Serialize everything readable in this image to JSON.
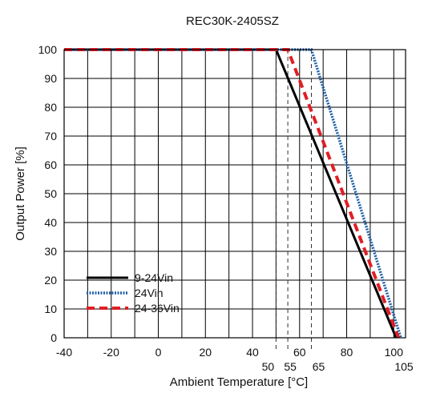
{
  "chart_data": {
    "type": "line",
    "title": "REC30K-2405SZ",
    "xlabel": "Ambient Temperature [°C]",
    "ylabel": "Output Power [%]",
    "xlim": [
      -40,
      105
    ],
    "ylim": [
      0,
      100
    ],
    "x_ticks": [
      "-40",
      "-20",
      "0",
      "20",
      "40",
      "60",
      "80",
      "100"
    ],
    "y_ticks": [
      "0",
      "10",
      "20",
      "30",
      "40",
      "50",
      "60",
      "70",
      "80",
      "90",
      "100"
    ],
    "marker_labels": [
      "50",
      "55",
      "65",
      "105"
    ],
    "grid": true,
    "legend_position": "bottom-left",
    "series": [
      {
        "name": "9-24Vin",
        "color": "#000000",
        "style": "solid",
        "x": [
          -40,
          50,
          101
        ],
        "y": [
          100,
          100,
          0
        ]
      },
      {
        "name": "24Vin",
        "color": "#2060a8",
        "style": "dotted",
        "x": [
          -40,
          65,
          103
        ],
        "y": [
          100,
          100,
          0
        ]
      },
      {
        "name": "24-36Vin",
        "color": "#e01e25",
        "style": "dashed",
        "x": [
          -40,
          55,
          102
        ],
        "y": [
          100,
          100,
          0
        ]
      }
    ],
    "reference_lines_x": [
      50,
      55,
      65
    ]
  }
}
